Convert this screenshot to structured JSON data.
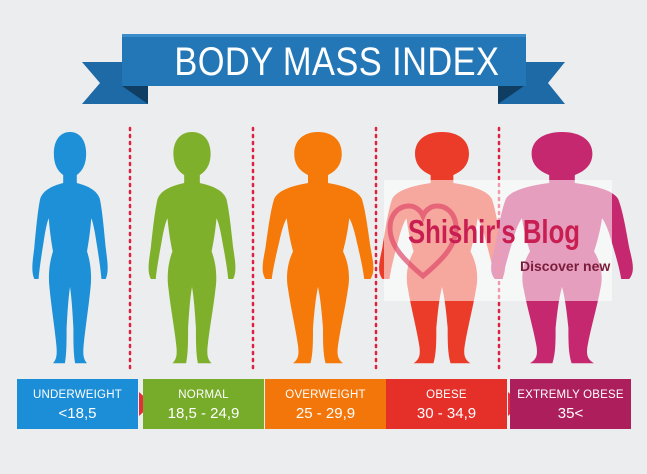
{
  "banner": {
    "title": "BODY MASS INDEX"
  },
  "categories": [
    {
      "label": "UNDERWEIGHT",
      "range": "<18,5",
      "color": "#1d90d8",
      "card_color": "#1c8ed8"
    },
    {
      "label": "NORMAL",
      "range": "18,5 - 24,9",
      "color": "#7fb02b",
      "card_color": "#77ab2a"
    },
    {
      "label": "OVERWEIGHT",
      "range": "25 - 29,9",
      "color": "#f57a0a",
      "card_color": "#f3760a"
    },
    {
      "label": "OBESE",
      "range": "30 - 34,9",
      "color": "#ea3c29",
      "card_color": "#e5302a"
    },
    {
      "label": "EXTREMLY OBESE",
      "range": "35<",
      "color": "#c5286f",
      "card_color": "#ad1f5c"
    }
  ],
  "watermark": {
    "title": "Shishir's Blog",
    "subtitle": "Discover new"
  },
  "colors": {
    "banner": "#2274b3",
    "banner_dark": "#14507f",
    "divider": "#e02040",
    "background": "#ecedee"
  }
}
